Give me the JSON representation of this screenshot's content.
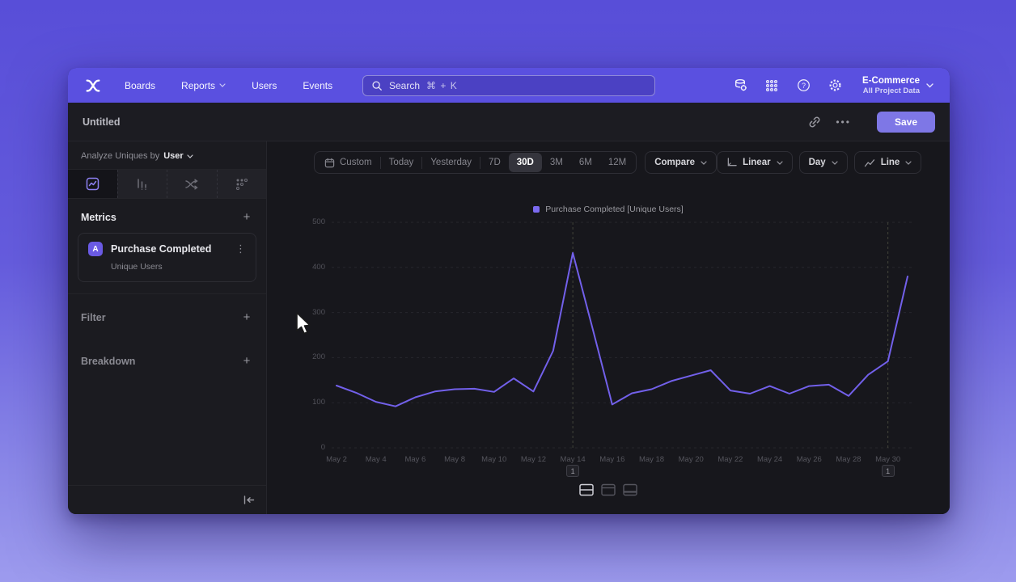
{
  "colors": {
    "brand_purple": "#5a50e0",
    "save_button": "#7e77e6",
    "line_color": "#7260ea",
    "legend_swatch": "#7b6af0",
    "metric_badge": "#6a5ae4"
  },
  "nav": {
    "items": [
      {
        "label": "Boards"
      },
      {
        "label": "Reports",
        "dropdown": true
      },
      {
        "label": "Users"
      },
      {
        "label": "Events"
      }
    ],
    "search": {
      "placeholder": "Search",
      "shortcut": "⌘ + K"
    },
    "project": {
      "name": "E-Commerce",
      "scope": "All Project Data"
    }
  },
  "header": {
    "title": "Untitled",
    "save_label": "Save"
  },
  "sidebar": {
    "analyze_prefix": "Analyze Uniques by",
    "analyze_value": "User",
    "tabs": [
      "insights",
      "funnels",
      "flows",
      "retention"
    ],
    "active_tab": "insights",
    "metrics_label": "Metrics",
    "metric_card": {
      "badge": "A",
      "title": "Purchase Completed",
      "subtitle": "Unique Users"
    },
    "filter_label": "Filter",
    "breakdown_label": "Breakdown"
  },
  "toolbar": {
    "ranges": [
      "Custom",
      "Today",
      "Yesterday",
      "7D",
      "30D",
      "3M",
      "6M",
      "12M"
    ],
    "active_range": "30D",
    "compare_label": "Compare",
    "scale_label": "Linear",
    "interval_label": "Day",
    "chart_type_label": "Line"
  },
  "chart_data": {
    "type": "line",
    "title": "",
    "legend": "Purchase Completed [Unique Users]",
    "legend_position": "top-center",
    "grid": "dashed-horizontal",
    "x": [
      "May 2",
      "May 3",
      "May 4",
      "May 5",
      "May 6",
      "May 7",
      "May 8",
      "May 9",
      "May 10",
      "May 11",
      "May 12",
      "May 13",
      "May 14",
      "May 15",
      "May 16",
      "May 17",
      "May 18",
      "May 19",
      "May 20",
      "May 21",
      "May 22",
      "May 23",
      "May 24",
      "May 25",
      "May 26",
      "May 27",
      "May 28",
      "May 29",
      "May 30",
      "May 31"
    ],
    "x_tick_every": 2,
    "series": [
      {
        "name": "Purchase Completed [Unique Users]",
        "values": [
          138,
          122,
          102,
          92,
          112,
          125,
          130,
          131,
          124,
          154,
          125,
          215,
          432,
          265,
          96,
          121,
          130,
          148,
          160,
          172,
          127,
          120,
          137,
          120,
          137,
          140,
          115,
          162,
          192,
          380
        ]
      }
    ],
    "ylim": [
      0,
      500
    ],
    "yticks": [
      0,
      100,
      200,
      300,
      400,
      500
    ],
    "annotations": [
      {
        "index": 12,
        "label": "1"
      },
      {
        "index": 28,
        "label": "1"
      }
    ]
  }
}
